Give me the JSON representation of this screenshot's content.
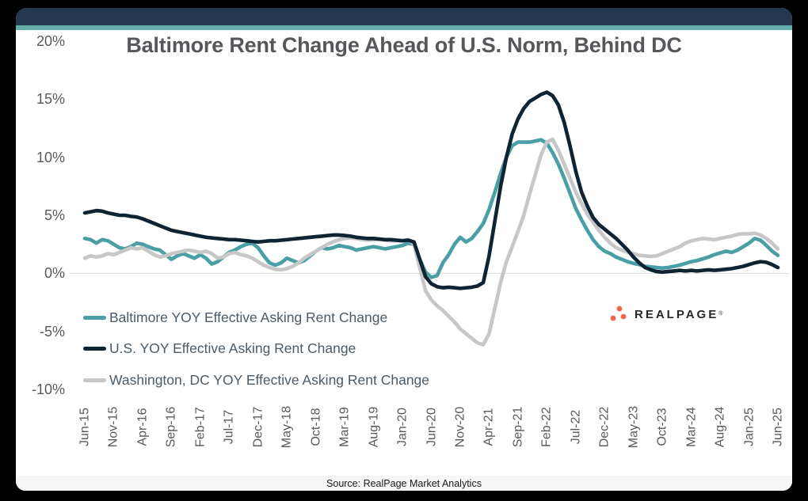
{
  "source_text": "Source: RealPage Market Analytics",
  "logo": {
    "text": "REALPAGE",
    "mark": "®",
    "dot_color": "#F0654A",
    "text_color": "#25282A"
  },
  "colors": {
    "header_bar": "#24394F",
    "accent_stripe": "#62AFA7",
    "gridline": "#DCDCDC",
    "axis_text": "#58595B",
    "legend_text": "#4B5A68"
  },
  "chart_data": {
    "type": "line",
    "title": "Baltimore Rent Change Ahead of U.S. Norm, Behind DC",
    "xlabel": "",
    "ylabel": "",
    "ylim": [
      -10,
      20
    ],
    "grid": "horizontal-zero-line-only",
    "grid_values": [
      0
    ],
    "legend_position": "inside-lower-left",
    "x_frequency": "monthly",
    "x_start": "Jun-15",
    "x_end": "Jun-25",
    "xtick_every_months": 5,
    "xtick_labels": [
      "Jun-15",
      "Nov-15",
      "Apr-16",
      "Sep-16",
      "Feb-17",
      "Jul-17",
      "Dec-17",
      "May-18",
      "Oct-18",
      "Mar-19",
      "Aug-19",
      "Jan-20",
      "Jun-20",
      "Nov-20",
      "Apr-21",
      "Sep-21",
      "Feb-22",
      "Jul-22",
      "Dec-22",
      "May-23",
      "Oct-23",
      "Mar-24",
      "Aug-24",
      "Jan-25",
      "Jun-25"
    ],
    "yticks": [
      {
        "label": "20%",
        "value": 20
      },
      {
        "label": "15%",
        "value": 15
      },
      {
        "label": "10%",
        "value": 10
      },
      {
        "label": "5%",
        "value": 5
      },
      {
        "label": "0%",
        "value": 0
      },
      {
        "label": "-5%",
        "value": -5
      },
      {
        "label": "-10%",
        "value": -10
      }
    ],
    "series": [
      {
        "name": "Baltimore YOY Effective Asking Rent Change",
        "color": "#4A9EA6",
        "z_order": 1,
        "values": [
          3.0,
          2.9,
          2.6,
          2.9,
          2.8,
          2.5,
          2.2,
          2.1,
          2.3,
          2.6,
          2.5,
          2.3,
          2.1,
          2.0,
          1.6,
          1.2,
          1.5,
          1.7,
          1.5,
          1.3,
          1.6,
          1.3,
          0.8,
          1.0,
          1.4,
          1.8,
          2.0,
          2.3,
          2.5,
          2.6,
          2.2,
          1.5,
          0.9,
          0.7,
          0.9,
          1.3,
          1.1,
          0.9,
          1.1,
          1.5,
          1.9,
          2.2,
          2.1,
          2.2,
          2.4,
          2.3,
          2.2,
          2.0,
          2.1,
          2.2,
          2.3,
          2.2,
          2.1,
          2.2,
          2.3,
          2.4,
          2.6,
          2.5,
          1.2,
          0.1,
          -0.35,
          -0.2,
          0.9,
          1.6,
          2.5,
          3.1,
          2.7,
          3.0,
          3.6,
          4.3,
          5.5,
          7.0,
          8.6,
          10.0,
          11.0,
          11.3,
          11.3,
          11.3,
          11.4,
          11.5,
          11.2,
          10.4,
          9.4,
          8.2,
          6.9,
          5.6,
          4.6,
          3.7,
          2.9,
          2.3,
          1.9,
          1.7,
          1.4,
          1.2,
          1.0,
          0.85,
          0.75,
          0.6,
          0.55,
          0.5,
          0.45,
          0.5,
          0.6,
          0.7,
          0.85,
          1.0,
          1.1,
          1.25,
          1.4,
          1.6,
          1.75,
          1.9,
          1.8,
          2.0,
          2.3,
          2.6,
          3.0,
          2.85,
          2.4,
          1.9,
          1.55
        ]
      },
      {
        "name": "U.S. YOY Effective Asking Rent Change",
        "color": "#0E2433",
        "z_order": 3,
        "values": [
          5.2,
          5.3,
          5.4,
          5.35,
          5.2,
          5.1,
          5.0,
          5.0,
          4.9,
          4.85,
          4.7,
          4.5,
          4.3,
          4.1,
          3.9,
          3.7,
          3.6,
          3.5,
          3.4,
          3.3,
          3.2,
          3.1,
          3.05,
          3.0,
          2.95,
          2.9,
          2.9,
          2.85,
          2.8,
          2.75,
          2.7,
          2.75,
          2.8,
          2.8,
          2.85,
          2.9,
          2.95,
          3.0,
          3.05,
          3.1,
          3.15,
          3.2,
          3.25,
          3.3,
          3.3,
          3.25,
          3.2,
          3.1,
          3.05,
          3.0,
          3.0,
          2.95,
          2.9,
          2.9,
          2.85,
          2.8,
          2.85,
          2.7,
          1.2,
          -0.3,
          -0.9,
          -1.15,
          -1.25,
          -1.2,
          -1.25,
          -1.3,
          -1.25,
          -1.2,
          -1.1,
          -0.8,
          1.5,
          4.5,
          7.5,
          10.0,
          12.0,
          13.3,
          14.2,
          14.8,
          15.1,
          15.4,
          15.6,
          15.3,
          14.5,
          13.0,
          11.0,
          8.8,
          7.0,
          5.8,
          4.8,
          4.2,
          3.8,
          3.4,
          3.0,
          2.5,
          2.0,
          1.4,
          0.9,
          0.5,
          0.3,
          0.15,
          0.1,
          0.15,
          0.2,
          0.25,
          0.2,
          0.25,
          0.2,
          0.25,
          0.3,
          0.25,
          0.3,
          0.35,
          0.4,
          0.5,
          0.6,
          0.75,
          0.9,
          1.0,
          0.95,
          0.75,
          0.5
        ]
      },
      {
        "name": "Washington, DC YOY Effective Asking Rent Change",
        "color": "#C7C7C7",
        "z_order": 2,
        "values": [
          1.3,
          1.5,
          1.4,
          1.5,
          1.7,
          1.6,
          1.8,
          2.0,
          2.2,
          2.1,
          2.2,
          1.9,
          1.6,
          1.4,
          1.5,
          1.7,
          1.8,
          1.9,
          2.0,
          1.9,
          1.8,
          1.9,
          1.7,
          1.3,
          1.4,
          1.7,
          1.8,
          1.6,
          1.5,
          1.3,
          1.0,
          0.7,
          0.5,
          0.35,
          0.3,
          0.4,
          0.6,
          0.9,
          1.3,
          1.6,
          1.9,
          2.2,
          2.5,
          2.7,
          2.9,
          3.0,
          3.05,
          3.0,
          2.9,
          2.85,
          2.9,
          2.9,
          2.85,
          2.8,
          2.8,
          2.8,
          2.9,
          2.5,
          0.5,
          -1.5,
          -2.3,
          -2.8,
          -3.2,
          -3.7,
          -4.2,
          -4.8,
          -5.2,
          -5.6,
          -6.0,
          -6.15,
          -5.2,
          -3.0,
          -0.8,
          1.0,
          2.3,
          3.6,
          5.0,
          6.8,
          8.5,
          10.2,
          11.3,
          11.55,
          10.6,
          9.4,
          8.2,
          7.0,
          6.0,
          5.1,
          4.4,
          3.7,
          3.1,
          2.6,
          2.2,
          2.0,
          1.8,
          1.7,
          1.55,
          1.5,
          1.45,
          1.5,
          1.7,
          1.9,
          2.1,
          2.3,
          2.6,
          2.8,
          2.9,
          3.0,
          2.95,
          2.9,
          3.0,
          3.1,
          3.2,
          3.35,
          3.4,
          3.4,
          3.45,
          3.3,
          3.0,
          2.6,
          2.1
        ]
      }
    ]
  }
}
